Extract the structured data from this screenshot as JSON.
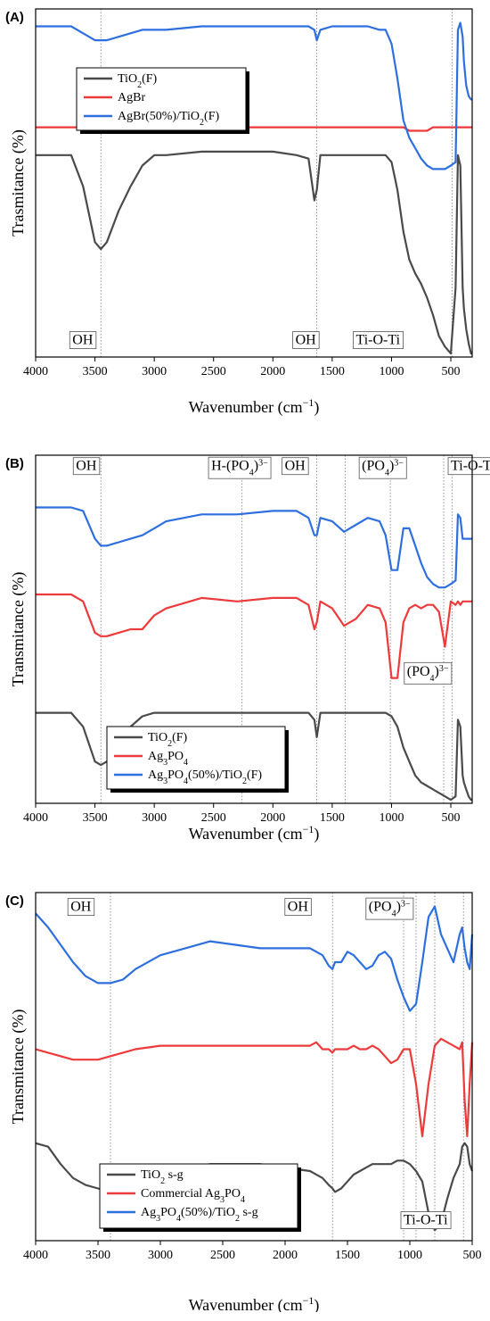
{
  "colors": {
    "tio2": "#4a4a4a",
    "silver": "#ee3a3a",
    "composite": "#2e6fe0"
  },
  "chart_data": [
    {
      "type": "line",
      "panel_label": "(A)",
      "xlabel": "Wavenumber (cm",
      "xlabel_sup": "−1",
      "xlabel_end": ")",
      "ylabel": "Trasmitance (%)",
      "xlim": [
        4000,
        320
      ],
      "xticks": [
        "4000",
        "3500",
        "3000",
        "2500",
        "2000",
        "1500",
        "1000",
        "500"
      ],
      "xtick_values": [
        4000,
        3500,
        3000,
        2500,
        2000,
        1500,
        1000,
        500
      ],
      "x": [
        4000,
        3700,
        3600,
        3500,
        3450,
        3400,
        3300,
        3200,
        3100,
        3000,
        2900,
        2600,
        2300,
        2000,
        1800,
        1700,
        1650,
        1630,
        1600,
        1500,
        1400,
        1300,
        1200,
        1100,
        1050,
        1000,
        950,
        900,
        850,
        800,
        750,
        700,
        650,
        600,
        550,
        500,
        460,
        440,
        420,
        400,
        390,
        370,
        350,
        330,
        320
      ],
      "series": [
        {
          "name": "TiO2(F)",
          "legend_main": "TiO",
          "legend_sub": "2",
          "legend_tail": "(F)",
          "color_key": "tio2",
          "y": [
            58,
            58,
            49,
            33,
            31,
            33,
            42,
            49,
            55,
            58,
            58,
            59,
            59,
            59,
            58,
            57,
            45,
            48,
            58,
            58,
            58,
            58,
            58,
            58,
            58,
            56,
            48,
            36,
            28,
            24,
            21,
            17,
            12,
            6,
            3,
            1,
            20,
            58,
            55,
            20,
            14,
            8,
            4,
            1,
            1
          ]
        },
        {
          "name": "AgBr",
          "legend_main": "AgBr",
          "legend_sub": "",
          "legend_tail": "",
          "color_key": "silver",
          "y": [
            66,
            66,
            66,
            66,
            66,
            66,
            66,
            66,
            66,
            66,
            66,
            66,
            66,
            66,
            66,
            66,
            66,
            66,
            66,
            66,
            66,
            66,
            66,
            66,
            66,
            66,
            66,
            66,
            65,
            65,
            65,
            65,
            66,
            66,
            66,
            66,
            66,
            66,
            66,
            66,
            66,
            66,
            66,
            66,
            66
          ]
        },
        {
          "name": "AgBr(50%)/TiO2(F)",
          "legend_main": "AgBr(50%)/TiO",
          "legend_sub": "2",
          "legend_tail": "(F)",
          "color_key": "composite",
          "y": [
            95,
            95,
            93,
            91,
            91,
            91,
            92,
            93,
            94,
            94,
            94,
            95,
            95,
            95,
            95,
            95,
            94,
            91,
            94,
            95,
            95,
            95,
            95,
            94,
            94,
            90,
            80,
            68,
            63,
            60,
            57,
            55,
            54,
            54,
            54,
            55,
            56,
            94,
            96,
            92,
            85,
            78,
            75,
            74,
            74
          ]
        }
      ],
      "ylim": [
        0,
        100
      ],
      "vlines": [
        3450,
        1630,
        490
      ],
      "annotations": [
        {
          "text": "OH",
          "x": 3690,
          "y": 5
        },
        {
          "text": "OH",
          "x": 1810,
          "y": 5
        },
        {
          "text": "Ti-O-Ti",
          "x": 1300,
          "y": 5
        }
      ],
      "legend_position": "upper-left"
    },
    {
      "type": "line",
      "panel_label": "(B)",
      "xlabel": "Wavenumber (cm",
      "xlabel_sup": "−1",
      "xlabel_end": ")",
      "ylabel": "Transmitance (%)",
      "xlim": [
        4000,
        320
      ],
      "xticks": [
        "4000",
        "3500",
        "3000",
        "2500",
        "2000",
        "1500",
        "1000",
        "500"
      ],
      "xtick_values": [
        4000,
        3500,
        3000,
        2500,
        2000,
        1500,
        1000,
        500
      ],
      "x": [
        4000,
        3700,
        3600,
        3500,
        3450,
        3400,
        3300,
        3200,
        3100,
        3000,
        2900,
        2600,
        2300,
        2000,
        1800,
        1700,
        1650,
        1630,
        1600,
        1500,
        1400,
        1300,
        1200,
        1100,
        1050,
        1000,
        950,
        900,
        850,
        800,
        750,
        700,
        650,
        600,
        550,
        500,
        460,
        440,
        420,
        400,
        390,
        370,
        350,
        330,
        320
      ],
      "series": [
        {
          "name": "TiO2(F)",
          "legend_main": "TiO",
          "legend_sub": "2",
          "legend_tail": "(F)",
          "color_key": "tio2",
          "y": [
            26,
            26,
            22,
            12,
            11,
            12,
            17,
            22,
            25,
            26,
            26,
            26,
            26,
            26,
            26,
            26,
            24,
            19,
            26,
            26,
            26,
            26,
            26,
            26,
            26,
            25,
            22,
            16,
            12,
            8,
            6,
            5,
            4,
            3,
            2,
            1,
            2,
            24,
            22,
            8,
            6,
            4,
            2,
            1,
            1
          ]
        },
        {
          "name": "Ag3PO4",
          "legend_main": "Ag",
          "legend_sub": "3",
          "legend_tail": "PO",
          "legend_sub2": "4",
          "legend_tail2": "",
          "color_key": "silver",
          "y": [
            60,
            60,
            58,
            49,
            48,
            48,
            49,
            50,
            50,
            54,
            56,
            59,
            58,
            59,
            59,
            57,
            50,
            52,
            58,
            56,
            51,
            53,
            57,
            56,
            52,
            36,
            36,
            52,
            56,
            57,
            56,
            57,
            57,
            55,
            45,
            58,
            57,
            58,
            57,
            58,
            58,
            58,
            58,
            58,
            58
          ]
        },
        {
          "name": "Ag3PO4(50%)/TiO2(F)",
          "legend_main": "Ag",
          "legend_sub": "3",
          "legend_tail": "PO",
          "legend_sub2": "4",
          "legend_tail2": "(50%)/TiO",
          "legend_sub3": "2",
          "legend_tail3": "(F)",
          "color_key": "composite",
          "y": [
            85,
            85,
            84,
            76,
            74,
            74,
            75,
            76,
            77,
            79,
            81,
            83,
            83,
            84,
            84,
            82,
            77,
            77,
            82,
            81,
            78,
            80,
            82,
            81,
            77,
            67,
            67,
            79,
            79,
            74,
            69,
            65,
            63,
            62,
            62,
            63,
            64,
            83,
            82,
            76,
            76,
            76,
            76,
            76,
            76
          ]
        }
      ],
      "ylim": [
        0,
        100
      ],
      "vlines": [
        3450,
        2260,
        1630,
        1390,
        1010,
        560,
        490
      ],
      "annotations": [
        {
          "text": "OH",
          "x": 3660,
          "y": 97
        },
        {
          "text": "H-(PO4)3−",
          "x": 2520,
          "y": 97
        },
        {
          "text": "OH",
          "x": 1900,
          "y": 97
        },
        {
          "text": "(PO4)3−",
          "x": 1250,
          "y": 97
        },
        {
          "text": "Ti-O-Ti",
          "x": 500,
          "y": 97
        },
        {
          "text": "(PO4)3−",
          "x": 870,
          "y": 38
        }
      ],
      "legend_position": "lower-center"
    },
    {
      "type": "line",
      "panel_label": "(C)",
      "xlabel": "Wavenumber (cm",
      "xlabel_sup": "−1",
      "xlabel_end": ")",
      "ylabel": "Transmitance (%)",
      "xlim": [
        4000,
        500
      ],
      "xticks": [
        "4000",
        "3500",
        "3000",
        "2500",
        "2000",
        "1500",
        "1000",
        "500"
      ],
      "xtick_values": [
        4000,
        3500,
        3000,
        2500,
        2000,
        1500,
        1000,
        500
      ],
      "x": [
        4000,
        3900,
        3800,
        3700,
        3600,
        3500,
        3400,
        3300,
        3200,
        3000,
        2800,
        2600,
        2400,
        2200,
        2000,
        1800,
        1750,
        1700,
        1650,
        1620,
        1600,
        1550,
        1500,
        1450,
        1400,
        1350,
        1300,
        1250,
        1200,
        1150,
        1100,
        1050,
        1000,
        950,
        900,
        850,
        800,
        750,
        700,
        650,
        600,
        580,
        560,
        540,
        520,
        500
      ],
      "series": [
        {
          "name": "TiO2 s-g",
          "legend_main": "TiO",
          "legend_sub": "2",
          "legend_tail": " s-g",
          "color_key": "tio2",
          "y": [
            28,
            27,
            22,
            18,
            16,
            15,
            14,
            14,
            15,
            18,
            21,
            22,
            22,
            22,
            21,
            20,
            19,
            18,
            16,
            15,
            14,
            15,
            17,
            19,
            20,
            21,
            22,
            22,
            22,
            22,
            23,
            23,
            22,
            20,
            17,
            8,
            3,
            5,
            12,
            18,
            22,
            27,
            28,
            27,
            22,
            20
          ]
        },
        {
          "name": "Commercial Ag3PO4",
          "legend_main": "Commercial Ag",
          "legend_sub": "3",
          "legend_tail": "PO",
          "legend_sub2": "4",
          "legend_tail2": "",
          "color_key": "silver",
          "y": [
            55,
            54,
            53,
            52,
            52,
            52,
            53,
            54,
            55,
            56,
            56,
            56,
            56,
            56,
            56,
            56,
            57,
            55,
            55,
            54,
            55,
            55,
            55,
            56,
            55,
            55,
            56,
            55,
            53,
            51,
            52,
            55,
            55,
            45,
            30,
            45,
            56,
            58,
            57,
            56,
            55,
            57,
            40,
            30,
            45,
            57
          ]
        },
        {
          "name": "Ag3PO4(50%)/TiO2 s-g",
          "legend_main": "Ag",
          "legend_sub": "3",
          "legend_tail": "PO",
          "legend_sub2": "4",
          "legend_tail2": "(50%)/TiO",
          "legend_sub3": "2",
          "legend_tail3": " s-g",
          "color_key": "composite",
          "y": [
            94,
            90,
            85,
            80,
            76,
            74,
            74,
            75,
            78,
            82,
            84,
            86,
            85,
            84,
            84,
            84,
            83,
            82,
            79,
            78,
            80,
            80,
            83,
            82,
            80,
            78,
            79,
            82,
            83,
            81,
            75,
            70,
            66,
            68,
            80,
            93,
            96,
            88,
            84,
            80,
            88,
            90,
            84,
            80,
            78,
            88
          ]
        }
      ],
      "ylim": [
        0,
        100
      ],
      "vlines": [
        3400,
        1620,
        1050,
        950,
        800,
        570
      ],
      "annotations": [
        {
          "text": "OH",
          "x": 3720,
          "y": 96
        },
        {
          "text": "OH",
          "x": 1980,
          "y": 96
        },
        {
          "text": "(PO4)3−",
          "x": 1330,
          "y": 96
        },
        {
          "text": "Ti-O-Ti",
          "x": 1050,
          "y": 6
        }
      ],
      "legend_position": "lower-center"
    }
  ]
}
